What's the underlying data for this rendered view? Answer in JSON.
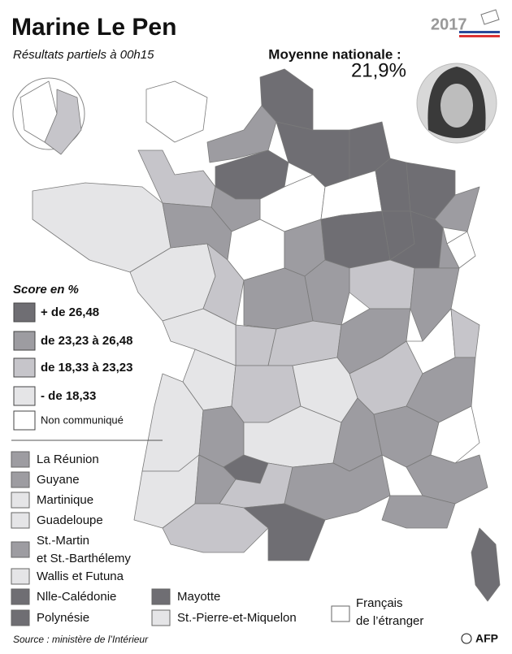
{
  "header": {
    "title": "Marine Le Pen",
    "subtitle": "Résultats partiels à 00h15",
    "year": "2017"
  },
  "national_average": {
    "label": "Moyenne nationale :",
    "value": "21,9%"
  },
  "legend": {
    "title": "Score en %",
    "classes": [
      {
        "label": "+ de 26,48",
        "color": "#6f6e73"
      },
      {
        "label": "de 23,23 à 26,48",
        "color": "#9d9ca1"
      },
      {
        "label": "de 18,33 à 23,23",
        "color": "#c6c5ca"
      },
      {
        "label": "- de 18,33",
        "color": "#e5e5e7"
      },
      {
        "label": "Non communiqué",
        "color": "#ffffff"
      }
    ]
  },
  "territories": [
    {
      "label": "La Réunion",
      "color": "#9d9ca1"
    },
    {
      "label": "Guyane",
      "color": "#9d9ca1"
    },
    {
      "label": "Martinique",
      "color": "#e5e5e7"
    },
    {
      "label": "Guadeloupe",
      "color": "#e5e5e7"
    },
    {
      "label": [
        "St.-Martin",
        "et St.-Barthélemy"
      ],
      "color": "#9d9ca1"
    },
    {
      "label": "Wallis et Futuna",
      "color": "#e5e5e7"
    },
    {
      "label": "Nlle-Calédonie",
      "color": "#6f6e73"
    },
    {
      "label": "Polynésie",
      "color": "#6f6e73"
    },
    {
      "label": "Mayotte",
      "color": "#6f6e73"
    },
    {
      "label": "St.-Pierre-et-Miquelon",
      "color": "#e5e5e7"
    },
    {
      "label": [
        "Français",
        "de l’étranger"
      ],
      "color": "#ffffff"
    }
  ],
  "footer": {
    "source": "Source : ministère de l’Intérieur",
    "credit": "AFP"
  }
}
